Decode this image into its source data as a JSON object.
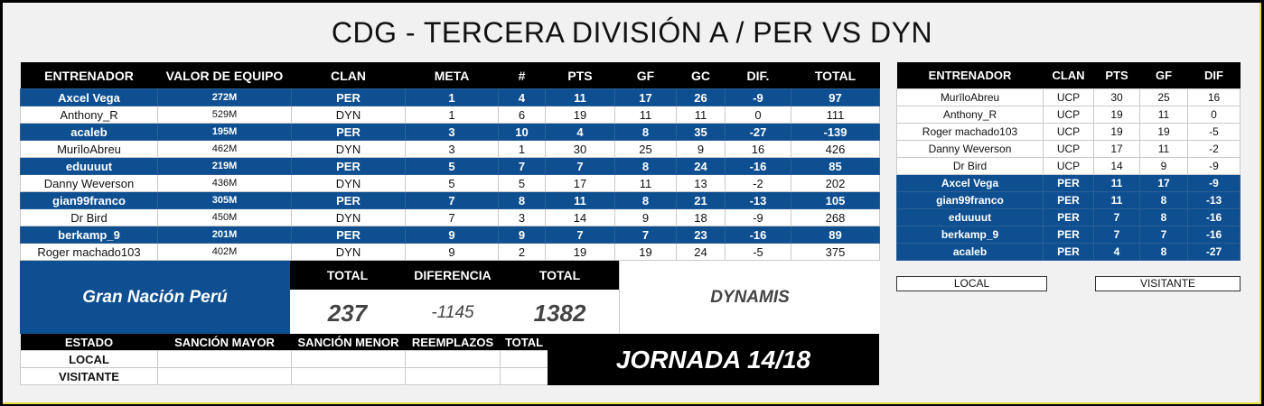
{
  "title": "CDG - TERCERA DIVISIÓN A / PER VS DYN",
  "main_table": {
    "headers": [
      "ENTRENADOR",
      "VALOR DE EQUIPO",
      "CLAN",
      "META",
      "#",
      "PTS",
      "GF",
      "GC",
      "DIF.",
      "TOTAL"
    ],
    "rows": [
      [
        "Axcel Vega",
        "272M",
        "PER",
        "1",
        "4",
        "11",
        "17",
        "26",
        "-9",
        "97"
      ],
      [
        "Anthony_R",
        "529M",
        "DYN",
        "1",
        "6",
        "19",
        "11",
        "11",
        "0",
        "111"
      ],
      [
        "acaleb",
        "195M",
        "PER",
        "3",
        "10",
        "4",
        "8",
        "35",
        "-27",
        "-139"
      ],
      [
        "MurīloAbreu",
        "462M",
        "DYN",
        "3",
        "1",
        "30",
        "25",
        "9",
        "16",
        "426"
      ],
      [
        "eduuuut",
        "219M",
        "PER",
        "5",
        "7",
        "7",
        "8",
        "24",
        "-16",
        "85"
      ],
      [
        "Danny Weverson",
        "436M",
        "DYN",
        "5",
        "5",
        "17",
        "11",
        "13",
        "-2",
        "202"
      ],
      [
        "gian99franco",
        "305M",
        "PER",
        "7",
        "8",
        "11",
        "8",
        "21",
        "-13",
        "105"
      ],
      [
        "Dr Bird",
        "450M",
        "DYN",
        "7",
        "3",
        "14",
        "9",
        "18",
        "-9",
        "268"
      ],
      [
        "berkamp_9",
        "201M",
        "PER",
        "9",
        "9",
        "7",
        "7",
        "23",
        "-16",
        "89"
      ],
      [
        "Roger machado103",
        "402M",
        "DYN",
        "9",
        "2",
        "19",
        "19",
        "24",
        "-5",
        "375"
      ]
    ]
  },
  "summary": {
    "team_local": "Gran Nación Perú",
    "team_visitor": "DYNAMIS",
    "total_label_1": "TOTAL",
    "diff_label": "DIFERENCIA",
    "total_label_2": "TOTAL",
    "total_local": "237",
    "difference": "-1145",
    "total_visitor": "1382"
  },
  "status": {
    "headers": [
      "ESTADO",
      "SANCIÓN MAYOR",
      "SANCIÓN MENOR",
      "REEMPLAZOS",
      "TOTAL"
    ],
    "rows": [
      "LOCAL",
      "VISITANTE"
    ]
  },
  "jornada": "JORNADA 14/18",
  "side_table": {
    "headers": [
      "ENTRENADOR",
      "CLAN",
      "PTS",
      "GF",
      "DIF"
    ],
    "rows": [
      [
        "MurīloAbreu",
        "UCP",
        "30",
        "25",
        "16"
      ],
      [
        "Anthony_R",
        "UCP",
        "19",
        "11",
        "0"
      ],
      [
        "Roger machado103",
        "UCP",
        "19",
        "19",
        "-5"
      ],
      [
        "Danny Weverson",
        "UCP",
        "17",
        "11",
        "-2"
      ],
      [
        "Dr Bird",
        "UCP",
        "14",
        "9",
        "-9"
      ],
      [
        "Axcel Vega",
        "PER",
        "11",
        "17",
        "-9"
      ],
      [
        "gian99franco",
        "PER",
        "11",
        "8",
        "-13"
      ],
      [
        "eduuuut",
        "PER",
        "7",
        "8",
        "-16"
      ],
      [
        "berkamp_9",
        "PER",
        "7",
        "7",
        "-16"
      ],
      [
        "acaleb",
        "PER",
        "4",
        "8",
        "-27"
      ]
    ]
  },
  "buttons": {
    "local": "LOCAL",
    "visitor": "VISITANTE"
  },
  "colors": {
    "blue": "#0e4f91",
    "black": "#000000",
    "white": "#ffffff",
    "frame_accent": "#e8d84a"
  }
}
